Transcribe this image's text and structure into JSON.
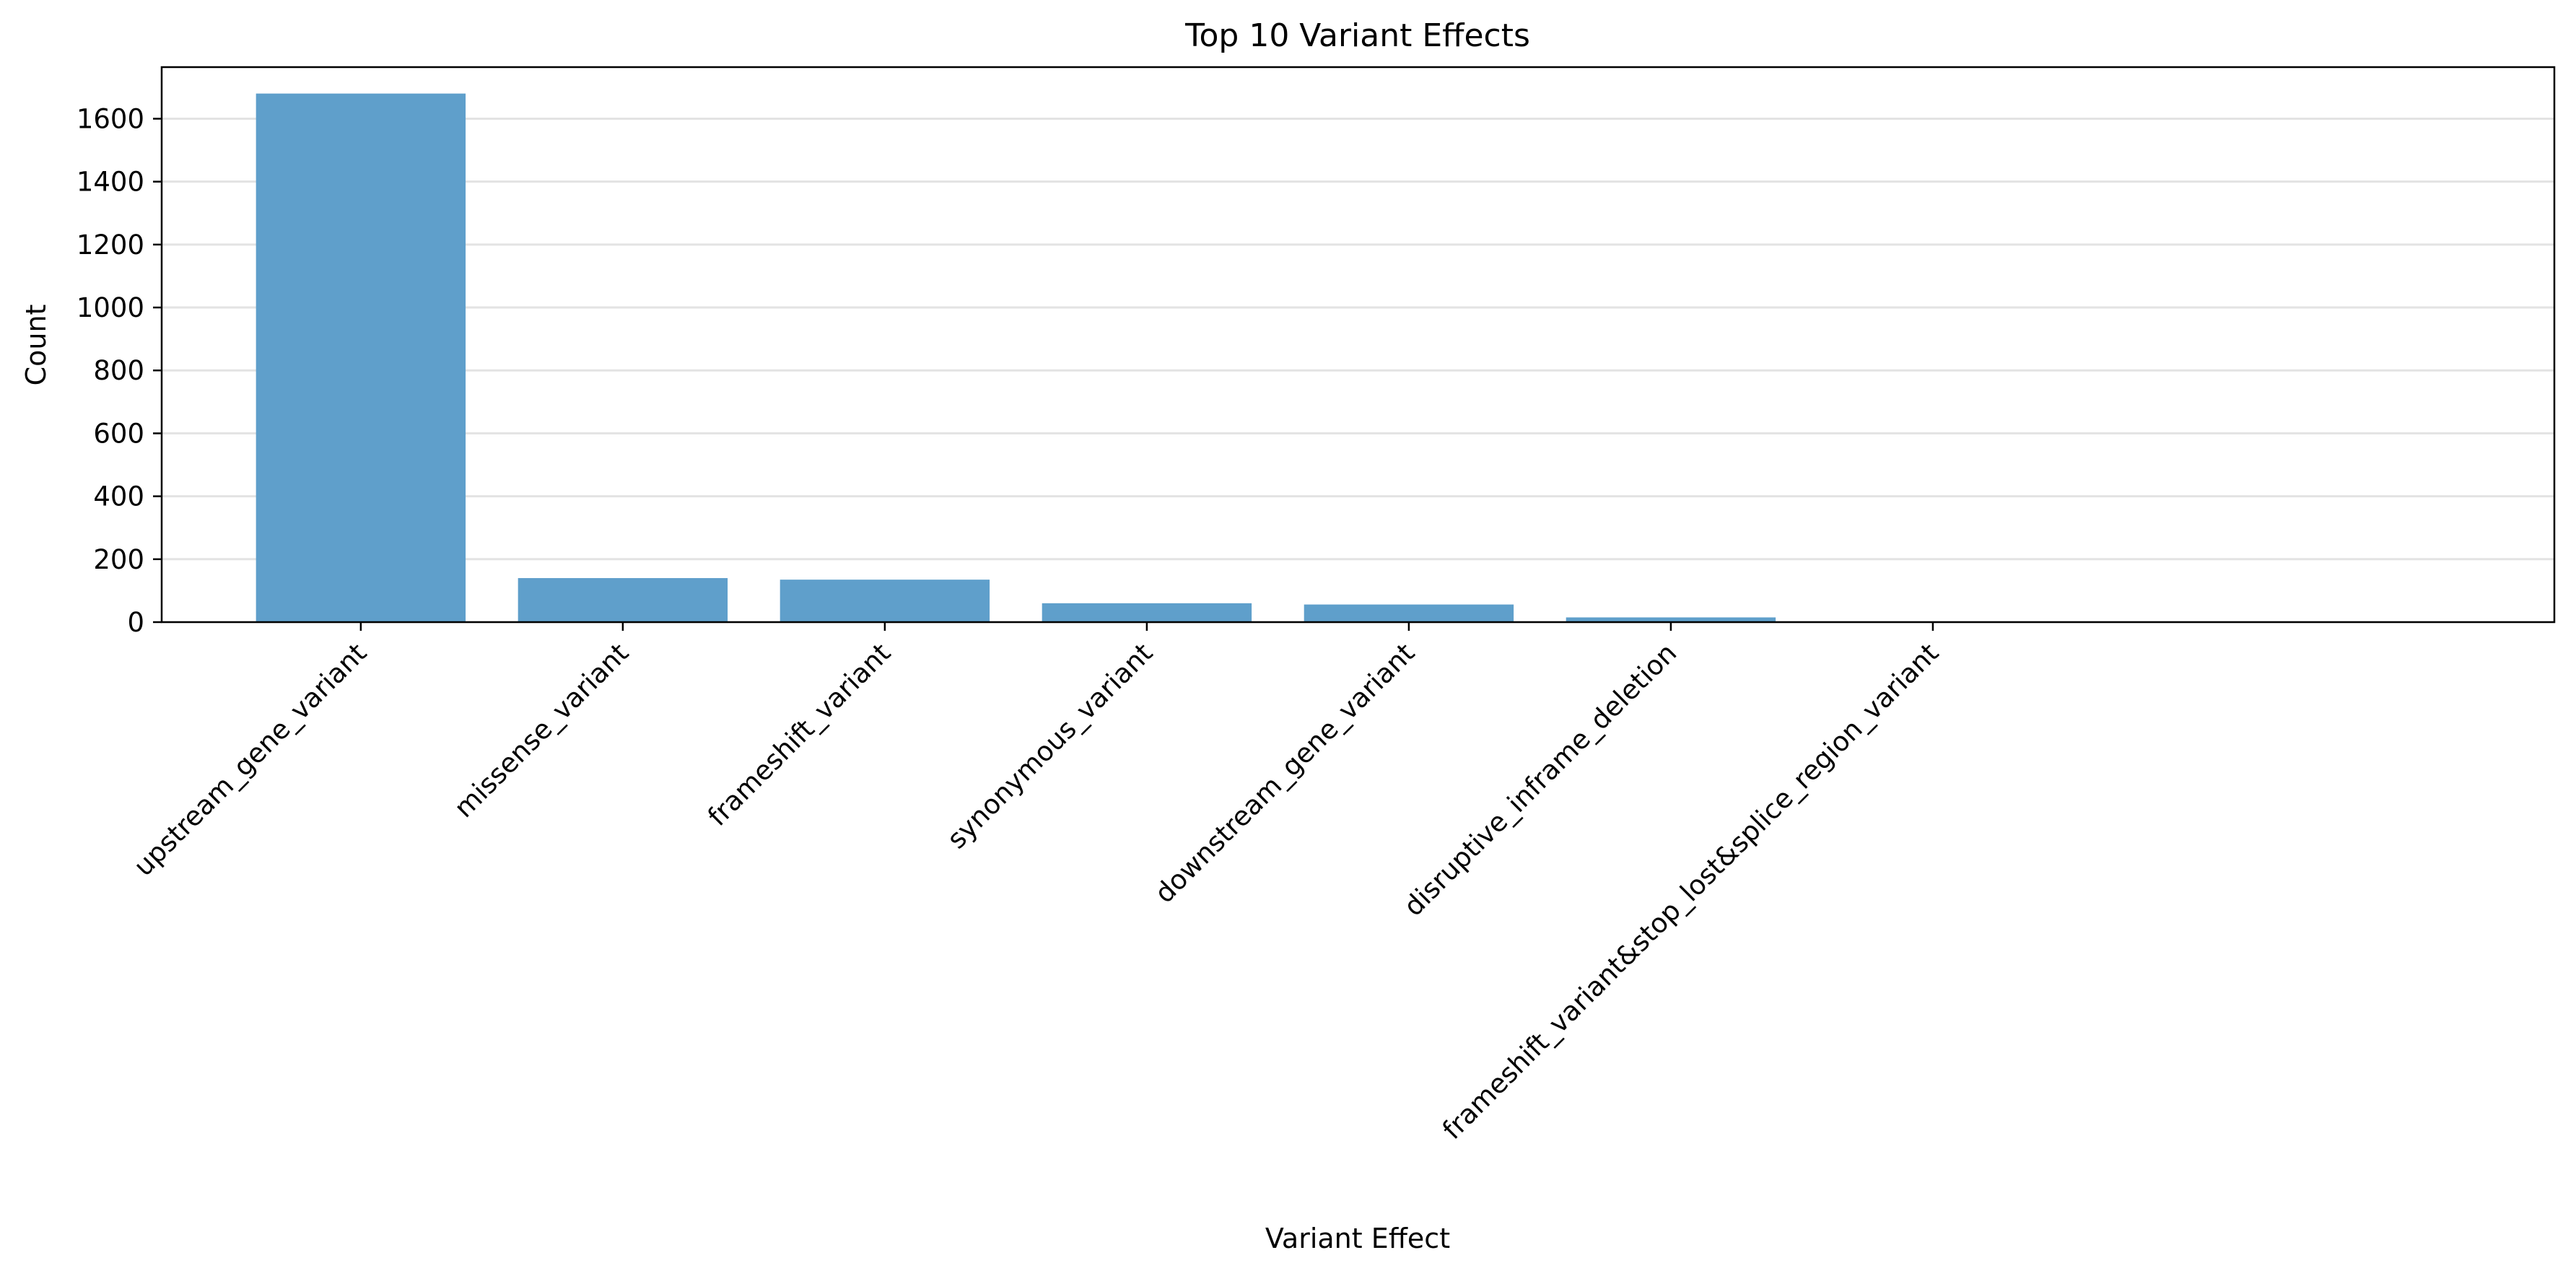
{
  "chart_data": {
    "type": "bar",
    "title": "Top 10 Variant Effects",
    "xlabel": "Variant Effect",
    "ylabel": "Count",
    "categories": [
      "upstream_gene_variant",
      "missense_variant",
      "frameshift_variant",
      "synonymous_variant",
      "downstream_gene_variant",
      "disruptive_inframe_deletion",
      "frameshift_variant&stop_lost&splice_region_variant"
    ],
    "values": [
      1680,
      140,
      135,
      60,
      56,
      15,
      2
    ],
    "ylim": [
      0,
      1764
    ],
    "yticks": [
      0,
      200,
      400,
      600,
      800,
      1000,
      1200,
      1400,
      1600
    ],
    "grid": true,
    "bar_color": "#5f9fcb"
  }
}
